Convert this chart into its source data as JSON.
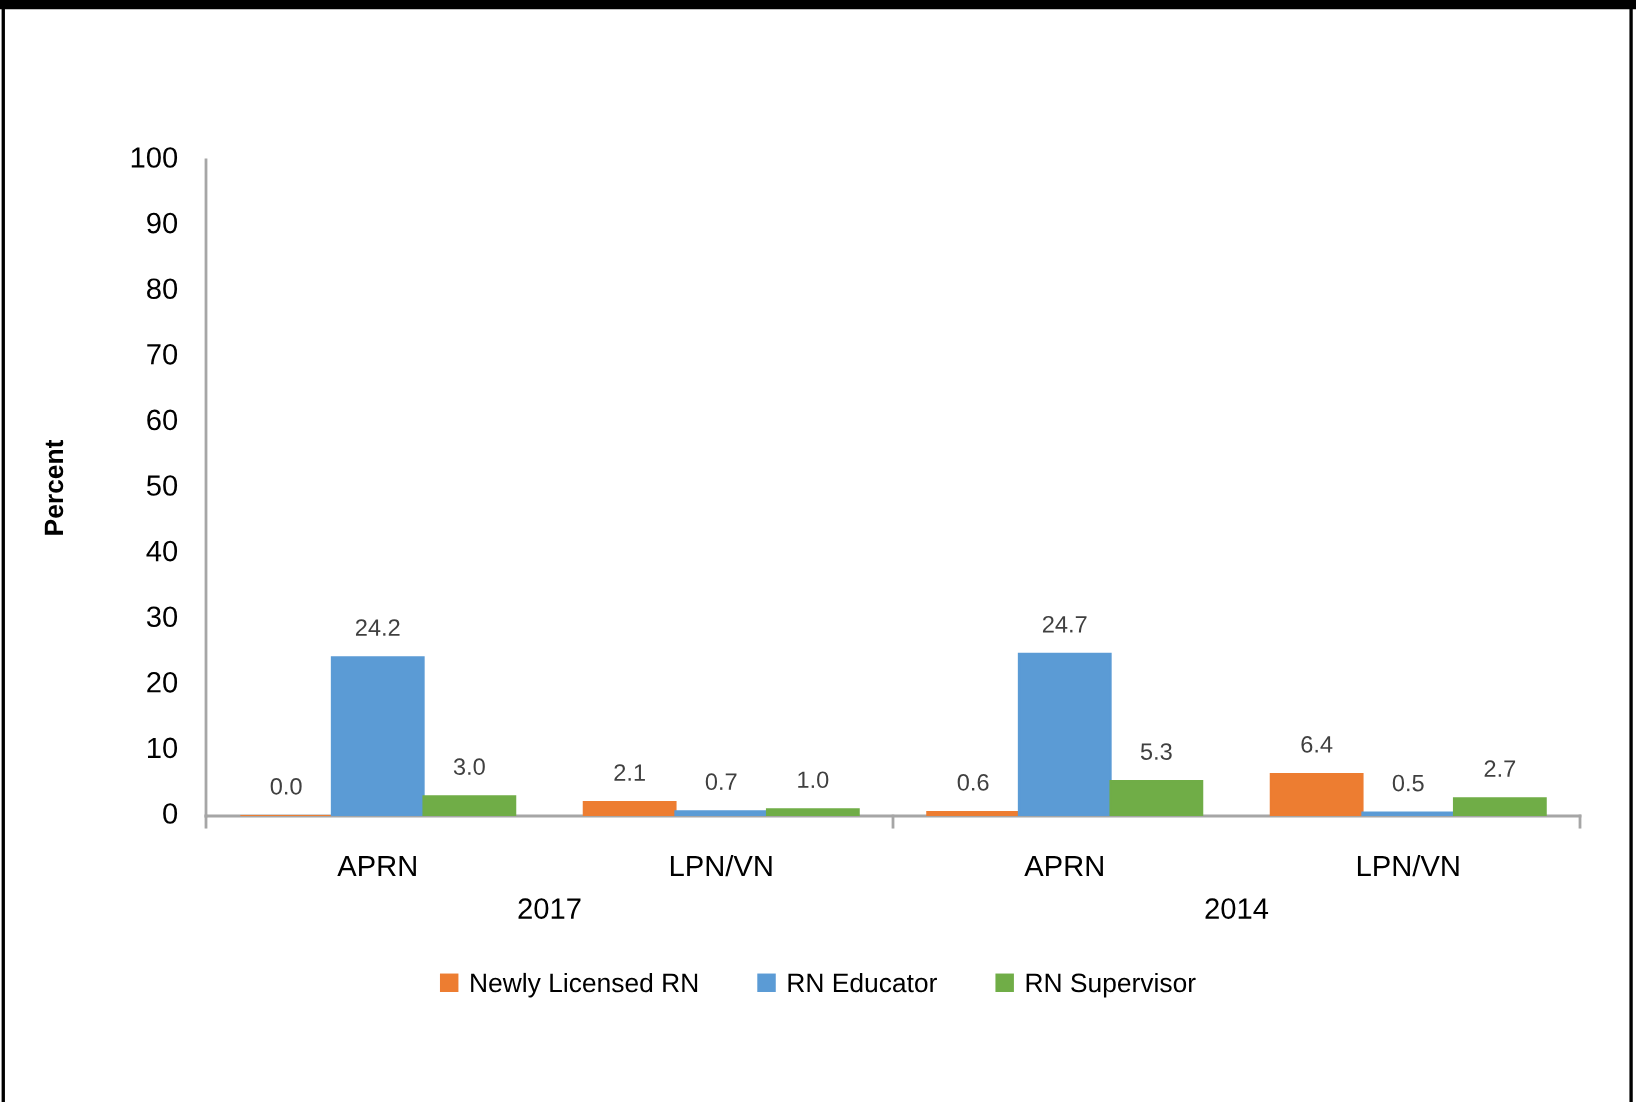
{
  "chart_data": {
    "type": "bar",
    "ylabel": "Percent",
    "categories": [
      "APRN",
      "LPN/VN",
      "APRN",
      "LPN/VN"
    ],
    "annotations": [
      "2017",
      "2014"
    ],
    "series": [
      {
        "name": "Newly Licensed RN",
        "color": "#ed7d31",
        "values": [
          0.0,
          2.1,
          0.6,
          6.4
        ],
        "value_labels": [
          "0.0",
          "2.1",
          "0.6",
          "6.4"
        ]
      },
      {
        "name": "RN Educator",
        "color": "#5b9bd5",
        "values": [
          24.2,
          0.7,
          24.7,
          0.5
        ],
        "value_labels": [
          "24.2",
          "0.7",
          "24.7",
          "0.5"
        ]
      },
      {
        "name": "RN Supervisor",
        "color": "#70ad47",
        "values": [
          3.0,
          1.0,
          5.3,
          2.7
        ],
        "value_labels": [
          "3.0",
          "1.0",
          "5.3",
          "2.7"
        ]
      }
    ],
    "ylim": [
      0,
      100
    ],
    "yticks": [
      0,
      10,
      20,
      30,
      40,
      50,
      60,
      70,
      80,
      90,
      100
    ],
    "grid": false,
    "legend": "bottom"
  }
}
